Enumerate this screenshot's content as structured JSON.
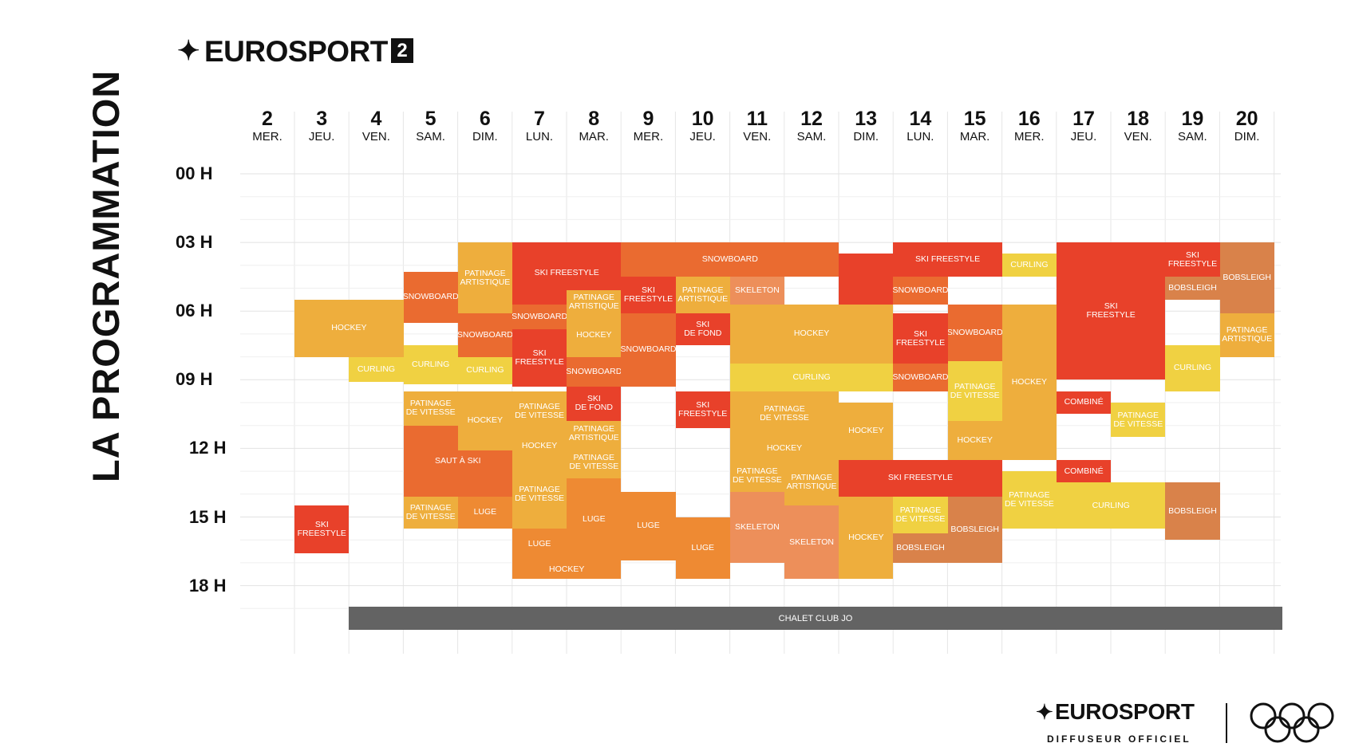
{
  "page_title": "LA PROGRAMMATION",
  "channel": {
    "name": "EUROSPORT",
    "number": "2"
  },
  "days": [
    {
      "num": "2",
      "name": "MER."
    },
    {
      "num": "3",
      "name": "JEU."
    },
    {
      "num": "4",
      "name": "VEN."
    },
    {
      "num": "5",
      "name": "SAM."
    },
    {
      "num": "6",
      "name": "DIM."
    },
    {
      "num": "7",
      "name": "LUN."
    },
    {
      "num": "8",
      "name": "MAR."
    },
    {
      "num": "9",
      "name": "MER."
    },
    {
      "num": "10",
      "name": "JEU."
    },
    {
      "num": "11",
      "name": "VEN."
    },
    {
      "num": "12",
      "name": "SAM."
    },
    {
      "num": "13",
      "name": "DIM."
    },
    {
      "num": "14",
      "name": "LUN."
    },
    {
      "num": "15",
      "name": "MAR."
    },
    {
      "num": "16",
      "name": "MER."
    },
    {
      "num": "17",
      "name": "JEU."
    },
    {
      "num": "18",
      "name": "VEN."
    },
    {
      "num": "19",
      "name": "SAM."
    },
    {
      "num": "20",
      "name": "DIM."
    }
  ],
  "hours": [
    "00 H",
    "03 H",
    "06 H",
    "09 H",
    "12 H",
    "15 H",
    "18 H"
  ],
  "colors": {
    "red": "#e8412a",
    "orange": "#ea6b30",
    "amber": "#ee8a33",
    "gold": "#eeae3d",
    "yellow": "#f0d142",
    "salmon": "#ed8f5a",
    "brown": "#d9824a",
    "gray": "#636363"
  },
  "events": [
    {
      "day": 1,
      "span": 2,
      "start": 2.5,
      "end": 5.0,
      "label": "HOCKEY",
      "color": "gold"
    },
    {
      "day": 1,
      "span": 1,
      "start": 11.5,
      "end": 13.6,
      "label": "SKI\nFREESTYLE",
      "color": "red"
    },
    {
      "day": 2,
      "span": 1,
      "start": 5.0,
      "end": 6.1,
      "label": "CURLING",
      "color": "yellow"
    },
    {
      "day": 3,
      "span": 1,
      "start": 1.3,
      "end": 3.5,
      "label": "SNOWBOARD",
      "color": "orange"
    },
    {
      "day": 3,
      "span": 1,
      "start": 4.5,
      "end": 6.2,
      "label": "CURLING",
      "color": "yellow"
    },
    {
      "day": 3,
      "span": 1,
      "start": 6.5,
      "end": 8.0,
      "label": "PATINAGE\nDE VITESSE",
      "color": "gold"
    },
    {
      "day": 3,
      "span": 2,
      "start": 8.0,
      "end": 11.1,
      "label": "SAUT À SKI",
      "color": "orange"
    },
    {
      "day": 3,
      "span": 1,
      "start": 11.1,
      "end": 12.5,
      "label": "PATINAGE\nDE VITESSE",
      "color": "gold"
    },
    {
      "day": 4,
      "span": 1,
      "start": 0.0,
      "end": 3.1,
      "label": "PATINAGE\nARTISTIQUE",
      "color": "gold"
    },
    {
      "day": 4,
      "span": 1,
      "start": 3.1,
      "end": 5.0,
      "label": "SNOWBOARD",
      "color": "orange"
    },
    {
      "day": 4,
      "span": 1,
      "start": 5.0,
      "end": 6.2,
      "label": "CURLING",
      "color": "yellow"
    },
    {
      "day": 4,
      "span": 1,
      "start": 6.5,
      "end": 9.1,
      "label": "HOCKEY",
      "color": "gold"
    },
    {
      "day": 4,
      "span": 1,
      "start": 11.1,
      "end": 12.5,
      "label": "LUGE",
      "color": "amber"
    },
    {
      "day": 5,
      "span": 2,
      "start": 0.0,
      "end": 2.7,
      "label": "SKI FREESTYLE",
      "color": "red"
    },
    {
      "day": 5,
      "span": 1,
      "start": 2.7,
      "end": 3.8,
      "label": "SNOWBOARD",
      "color": "orange"
    },
    {
      "day": 5,
      "span": 1,
      "start": 3.8,
      "end": 6.3,
      "label": "SKI\nFREESTYLE",
      "color": "red"
    },
    {
      "day": 5,
      "span": 1,
      "start": 6.5,
      "end": 8.3,
      "label": "PATINAGE\nDE VITESSE",
      "color": "gold"
    },
    {
      "day": 5,
      "span": 1,
      "start": 8.3,
      "end": 9.5,
      "label": "HOCKEY",
      "color": "gold"
    },
    {
      "day": 5,
      "span": 1,
      "start": 9.5,
      "end": 12.5,
      "label": "PATINAGE\nDE VITESSE",
      "color": "gold"
    },
    {
      "day": 5,
      "span": 1,
      "start": 12.5,
      "end": 13.9,
      "label": "LUGE",
      "color": "amber"
    },
    {
      "day": 5,
      "span": 2,
      "start": 13.9,
      "end": 14.7,
      "label": "HOCKEY",
      "color": "amber"
    },
    {
      "day": 6,
      "span": 1,
      "start": 2.1,
      "end": 3.1,
      "label": "PATINAGE\nARTISTIQUE",
      "color": "gold"
    },
    {
      "day": 6,
      "span": 1,
      "start": 3.1,
      "end": 5.0,
      "label": "HOCKEY",
      "color": "gold"
    },
    {
      "day": 6,
      "span": 1,
      "start": 5.0,
      "end": 6.3,
      "label": "SNOWBOARD",
      "color": "orange"
    },
    {
      "day": 6,
      "span": 1,
      "start": 6.3,
      "end": 7.8,
      "label": "SKI\nDE FOND",
      "color": "red"
    },
    {
      "day": 6,
      "span": 1,
      "start": 7.8,
      "end": 8.9,
      "label": "PATINAGE\nARTISTIQUE",
      "color": "gold"
    },
    {
      "day": 6,
      "span": 1,
      "start": 8.9,
      "end": 10.3,
      "label": "PATINAGE\nDE VITESSE",
      "color": "gold"
    },
    {
      "day": 6,
      "span": 1,
      "start": 10.3,
      "end": 13.9,
      "label": "LUGE",
      "color": "amber"
    },
    {
      "day": 7,
      "span": 4,
      "start": 0.0,
      "end": 1.5,
      "label": "SNOWBOARD",
      "color": "orange"
    },
    {
      "day": 7,
      "span": 1,
      "start": 1.5,
      "end": 3.1,
      "label": "SKI\nFREESTYLE",
      "color": "red"
    },
    {
      "day": 7,
      "span": 1,
      "start": 3.1,
      "end": 6.3,
      "label": "SNOWBOARD",
      "color": "orange"
    },
    {
      "day": 7,
      "span": 1,
      "start": 10.9,
      "end": 13.9,
      "label": "LUGE",
      "color": "amber"
    },
    {
      "day": 8,
      "span": 1,
      "start": 1.5,
      "end": 3.1,
      "label": "PATINAGE\nARTISTIQUE",
      "color": "gold"
    },
    {
      "day": 8,
      "span": 1,
      "start": 3.1,
      "end": 4.5,
      "label": "SKI\nDE FOND",
      "color": "red"
    },
    {
      "day": 8,
      "span": 1,
      "start": 6.5,
      "end": 8.1,
      "label": "SKI\nFREESTYLE",
      "color": "red"
    },
    {
      "day": 8,
      "span": 1,
      "start": 12.0,
      "end": 14.7,
      "label": "LUGE",
      "color": "amber"
    },
    {
      "day": 9,
      "span": 1,
      "start": 1.5,
      "end": 2.7,
      "label": "SKELETON",
      "color": "salmon"
    },
    {
      "day": 9,
      "span": 3,
      "start": 2.7,
      "end": 5.3,
      "label": "HOCKEY",
      "color": "gold"
    },
    {
      "day": 9,
      "span": 3,
      "start": 5.3,
      "end": 6.5,
      "label": "CURLING",
      "color": "yellow"
    },
    {
      "day": 9,
      "span": 2,
      "start": 6.5,
      "end": 8.5,
      "label": "PATINAGE\nDE VITESSE",
      "color": "gold"
    },
    {
      "day": 9,
      "span": 2,
      "start": 8.5,
      "end": 9.5,
      "label": "HOCKEY",
      "color": "gold"
    },
    {
      "day": 9,
      "span": 1,
      "start": 9.5,
      "end": 10.9,
      "label": "PATINAGE\nDE VITESSE",
      "color": "gold"
    },
    {
      "day": 9,
      "span": 1,
      "start": 10.9,
      "end": 14.0,
      "label": "SKELETON",
      "color": "salmon"
    },
    {
      "day": 10,
      "span": 1,
      "start": 9.5,
      "end": 11.5,
      "label": "PATINAGE\nARTISTIQUE",
      "color": "gold"
    },
    {
      "day": 10,
      "span": 1,
      "start": 11.5,
      "end": 14.7,
      "label": "SKELETON",
      "color": "salmon"
    },
    {
      "day": 11,
      "span": 1,
      "start": 0.5,
      "end": 2.7,
      "label": "",
      "color": "red"
    },
    {
      "day": 11,
      "span": 1,
      "start": 7.0,
      "end": 9.5,
      "label": "HOCKEY",
      "color": "gold"
    },
    {
      "day": 11,
      "span": 3,
      "start": 9.5,
      "end": 11.1,
      "label": "SKI FREESTYLE",
      "color": "red"
    },
    {
      "day": 11,
      "span": 1,
      "start": 11.1,
      "end": 14.7,
      "label": "HOCKEY",
      "color": "gold"
    },
    {
      "day": 12,
      "span": 2,
      "start": 0.0,
      "end": 1.5,
      "label": "SKI FREESTYLE",
      "color": "red"
    },
    {
      "day": 12,
      "span": 1,
      "start": 1.5,
      "end": 2.7,
      "label": "SNOWBOARD",
      "color": "orange"
    },
    {
      "day": 12,
      "span": 1,
      "start": 3.1,
      "end": 5.3,
      "label": "SKI\nFREESTYLE",
      "color": "red"
    },
    {
      "day": 12,
      "span": 1,
      "start": 5.3,
      "end": 6.5,
      "label": "SNOWBOARD",
      "color": "orange"
    },
    {
      "day": 12,
      "span": 1,
      "start": 11.1,
      "end": 12.7,
      "label": "PATINAGE\nDE VITESSE",
      "color": "yellow"
    },
    {
      "day": 12,
      "span": 1,
      "start": 12.7,
      "end": 14.0,
      "label": "BOBSLEIGH",
      "color": "brown"
    },
    {
      "day": 13,
      "span": 1,
      "start": 2.7,
      "end": 5.2,
      "label": "SNOWBOARD",
      "color": "orange"
    },
    {
      "day": 13,
      "span": 1,
      "start": 5.2,
      "end": 7.8,
      "label": "PATINAGE\nDE VITESSE",
      "color": "yellow"
    },
    {
      "day": 13,
      "span": 1,
      "start": 7.8,
      "end": 9.5,
      "label": "HOCKEY",
      "color": "gold"
    },
    {
      "day": 13,
      "span": 1,
      "start": 11.1,
      "end": 14.0,
      "label": "BOBSLEIGH",
      "color": "brown"
    },
    {
      "day": 14,
      "span": 1,
      "start": 0.5,
      "end": 1.5,
      "label": "CURLING",
      "color": "yellow"
    },
    {
      "day": 14,
      "span": 1,
      "start": 2.7,
      "end": 9.5,
      "label": "HOCKEY",
      "color": "gold"
    },
    {
      "day": 14,
      "span": 1,
      "start": 10.0,
      "end": 12.5,
      "label": "PATINAGE\nDE VITESSE",
      "color": "yellow"
    },
    {
      "day": 15,
      "span": 2,
      "start": 0.0,
      "end": 6.0,
      "label": "SKI\nFREESTYLE",
      "color": "red"
    },
    {
      "day": 15,
      "span": 1,
      "start": 6.5,
      "end": 7.5,
      "label": "COMBINÉ",
      "color": "red"
    },
    {
      "day": 15,
      "span": 1,
      "start": 9.5,
      "end": 10.5,
      "label": "COMBINÉ",
      "color": "red"
    },
    {
      "day": 15,
      "span": 2,
      "start": 10.5,
      "end": 12.5,
      "label": "CURLING",
      "color": "yellow"
    },
    {
      "day": 16,
      "span": 1,
      "start": 7.0,
      "end": 8.5,
      "label": "PATINAGE\nDE VITESSE",
      "color": "yellow"
    },
    {
      "day": 17,
      "span": 1,
      "start": 0.0,
      "end": 1.5,
      "label": "SKI\nFREESTYLE",
      "color": "red"
    },
    {
      "day": 17,
      "span": 1,
      "start": 1.5,
      "end": 2.5,
      "label": "BOBSLEIGH",
      "color": "brown"
    },
    {
      "day": 17,
      "span": 1,
      "start": 4.5,
      "end": 6.5,
      "label": "CURLING",
      "color": "yellow"
    },
    {
      "day": 17,
      "span": 1,
      "start": 10.5,
      "end": 13.0,
      "label": "BOBSLEIGH",
      "color": "brown"
    },
    {
      "day": 18,
      "span": 1,
      "start": 0.0,
      "end": 3.1,
      "label": "BOBSLEIGH",
      "color": "brown"
    },
    {
      "day": 18,
      "span": 1,
      "start": 3.1,
      "end": 5.0,
      "label": "PATINAGE\nARTISTIQUE",
      "color": "gold"
    }
  ],
  "chalet": "CHALET CLUB JO",
  "footer": {
    "brand": "EUROSPORT",
    "sub": "DIFFUSEUR OFFICIEL"
  }
}
